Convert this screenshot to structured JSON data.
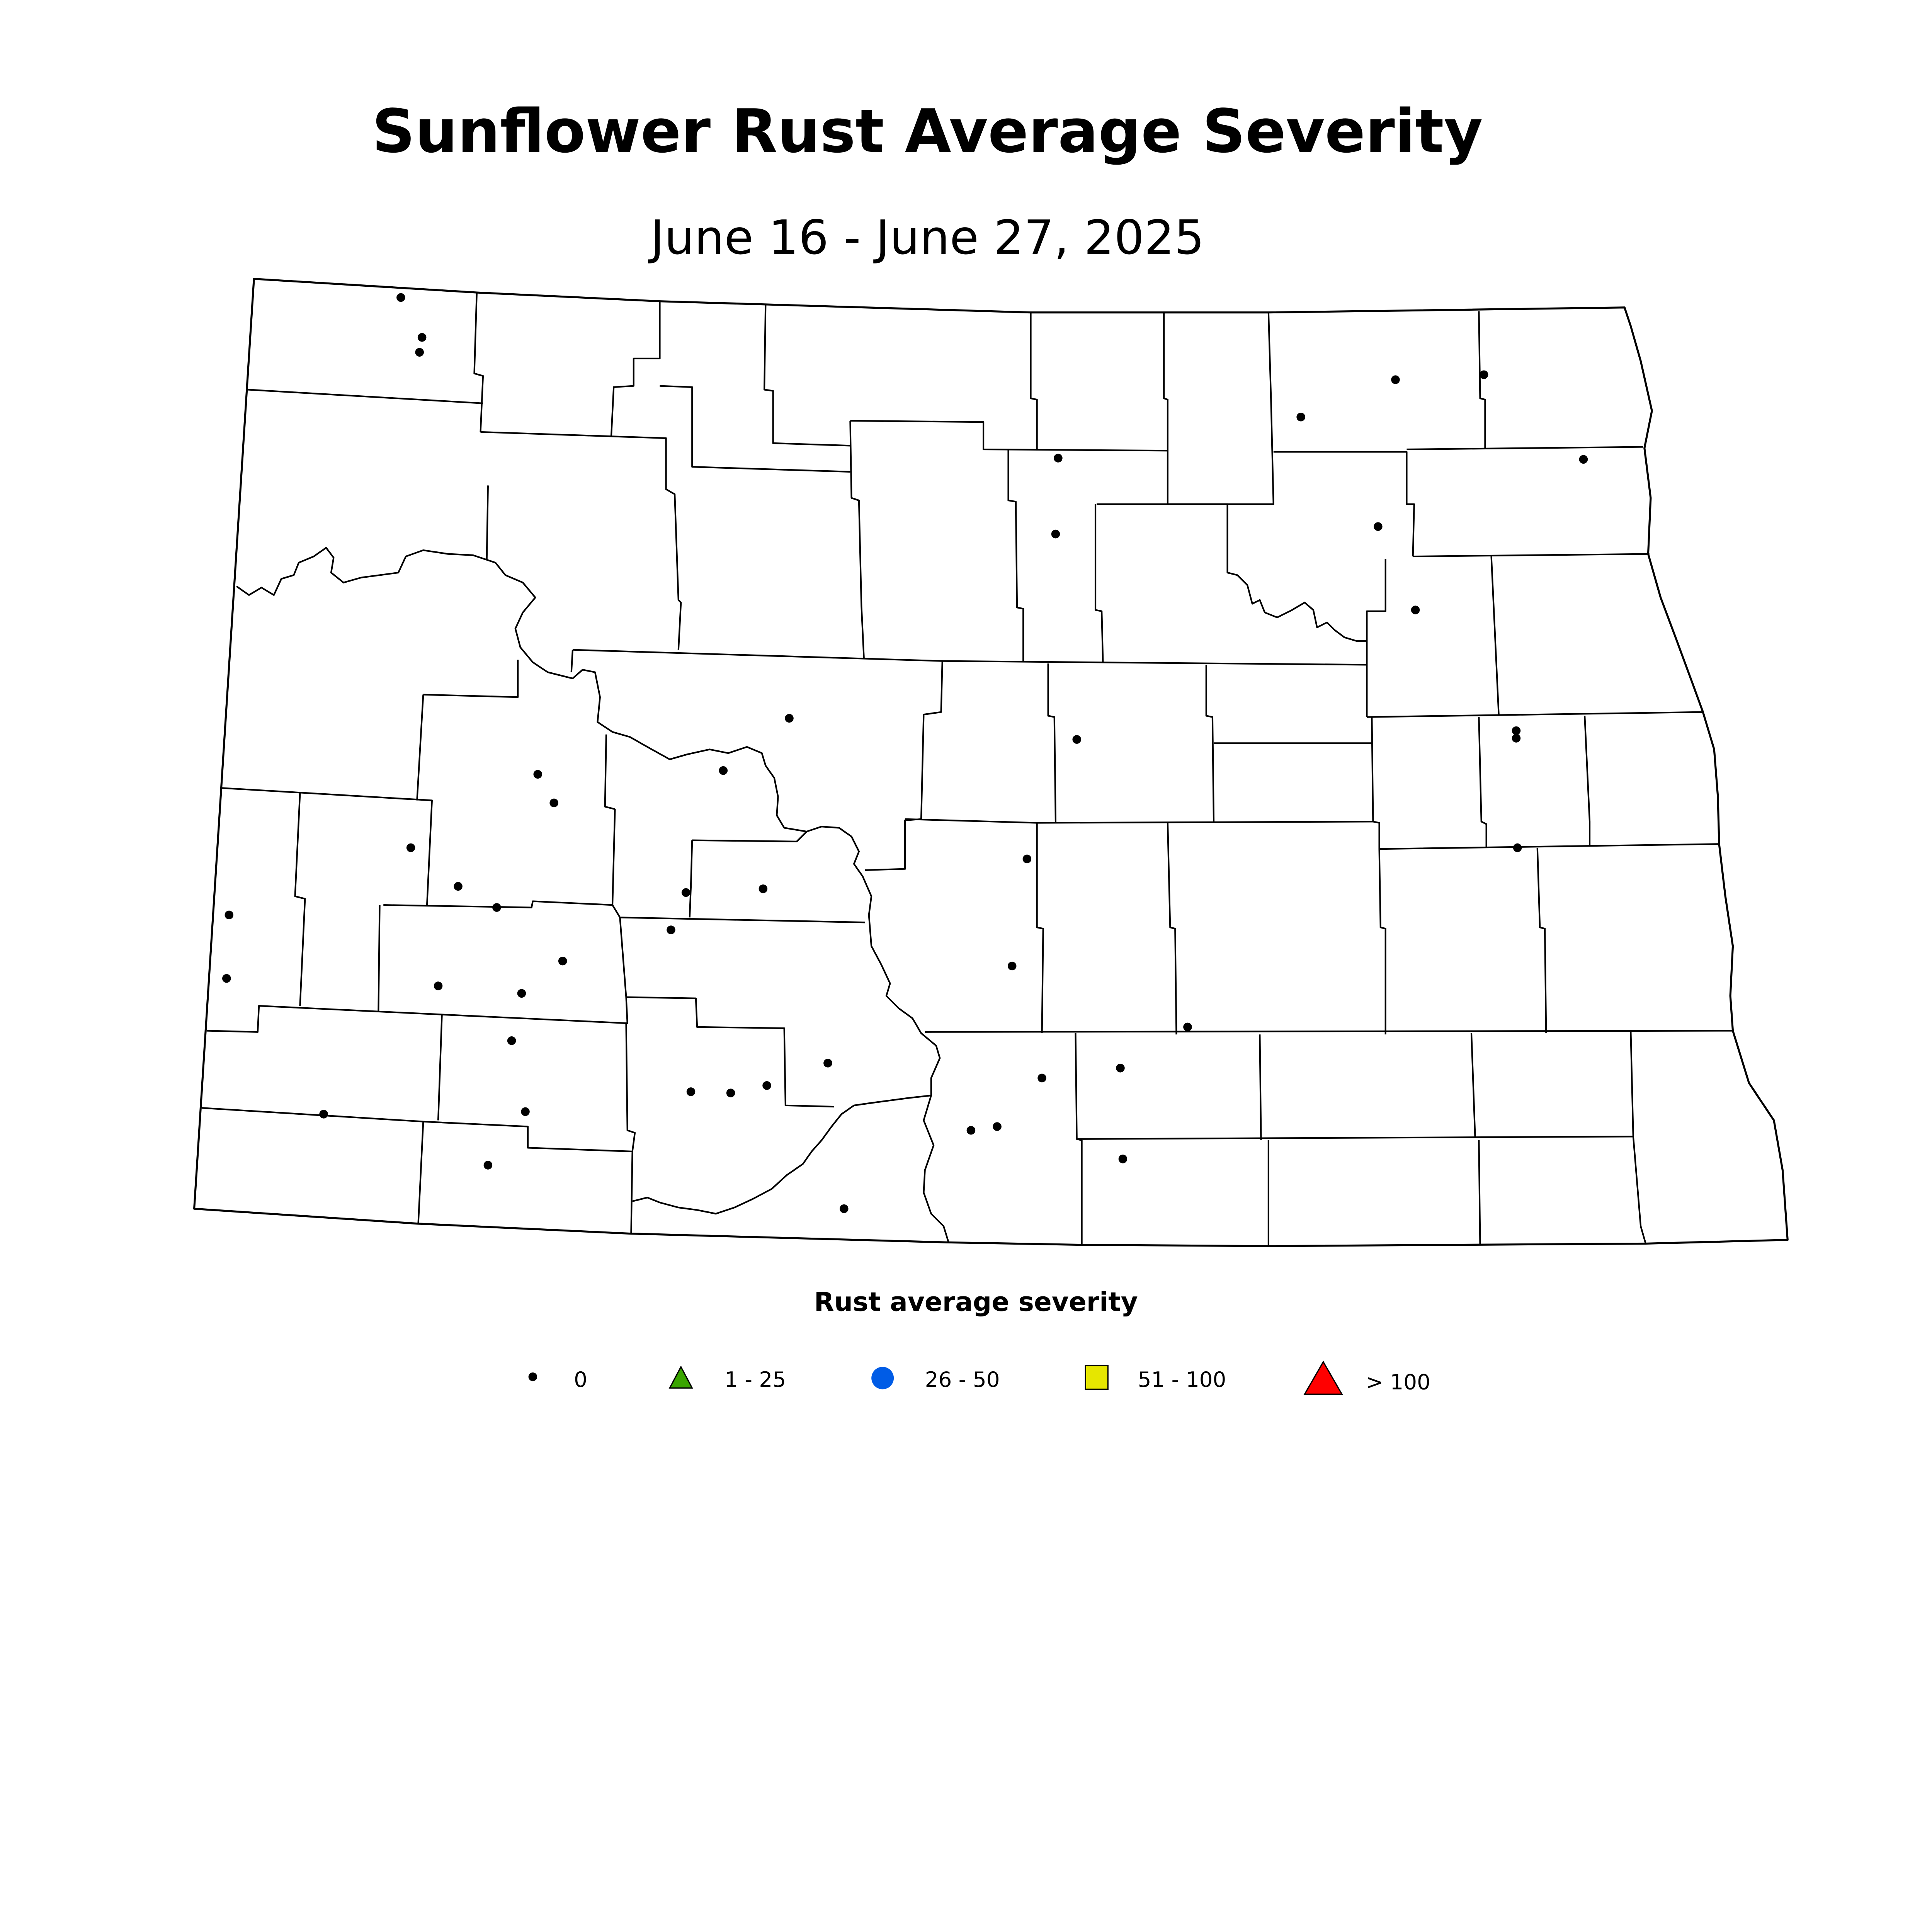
{
  "title": "Sunflower Rust Average Severity",
  "subtitle": "June 16 - June 27, 2025",
  "legend": {
    "title": "Rust average severity",
    "items": [
      {
        "label": "0",
        "symbol": "dot",
        "color": "#000000"
      },
      {
        "label": "1 - 25",
        "symbol": "triangle",
        "color": "#3aa500"
      },
      {
        "label": "26 - 50",
        "symbol": "circle",
        "color": "#005ce6"
      },
      {
        "label": "51 - 100",
        "symbol": "square",
        "color": "#e6e600"
      },
      {
        "label": "> 100",
        "symbol": "triangle-large",
        "color": "#ff0000"
      }
    ]
  },
  "observations": {
    "severity_class": "0",
    "count": 47
  }
}
